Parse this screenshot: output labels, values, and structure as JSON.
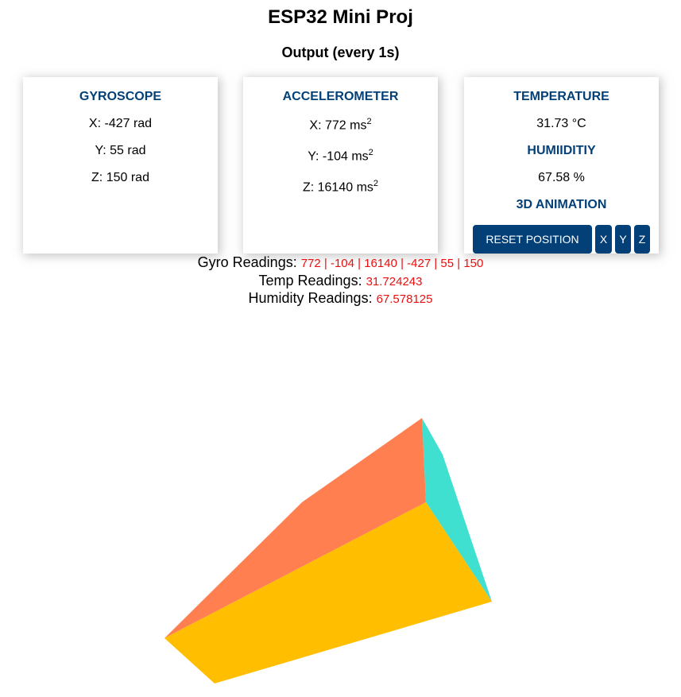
{
  "header": {
    "title": "ESP32 Mini Proj",
    "subtitle": "Output (every 1s)"
  },
  "gyroscope": {
    "heading": "GYROSCOPE",
    "x": "X: -427 rad",
    "y": "Y: 55 rad",
    "z": "Z: 150 rad"
  },
  "accelerometer": {
    "heading": "ACCELEROMETER",
    "x": "X: 772 ms",
    "y": "Y: -104 ms",
    "z": "Z: 16140 ms",
    "unit_exp": "2"
  },
  "environment": {
    "temp_heading": "TEMPERATURE",
    "temp_value": "31.73 °C",
    "humidity_heading": "HUMIIDITIY",
    "humidity_value": "67.58 %",
    "animation_heading": "3D ANIMATION"
  },
  "buttons": {
    "reset": "RESET POSITION",
    "x": "X",
    "y": "Y",
    "z": "Z"
  },
  "readings": {
    "gyro_label": "Gyro Readings: ",
    "gyro_value": "772 | -104 | 16140 | -427 | 55 | 150",
    "temp_label": "Temp Readings: ",
    "temp_value": "31.724243",
    "humidity_label": "Humidity Readings: ",
    "humidity_value": "67.578125"
  },
  "colors": {
    "accent": "#034078",
    "reading_value": "#e81010",
    "face_top": "#ff7f50",
    "face_front": "#ffbf00",
    "face_side": "#40e0d0"
  }
}
